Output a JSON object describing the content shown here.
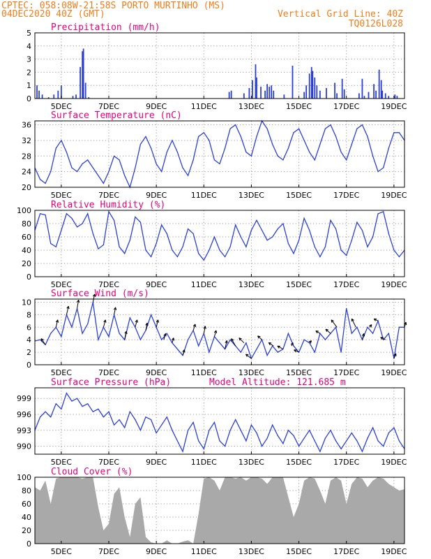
{
  "header": {
    "line1_left": "CPTEC:   058:08W-21:58S  PORTO MURTINHO (MS)",
    "line2_left": "04DEC2020 40Z (GMT)",
    "line2_right": "Vertical Grid Line: 40Z",
    "line3_right": "TQ0126L028"
  },
  "x_ticks": [
    "5DEC",
    "7DEC",
    "9DEC",
    "11DEC",
    "13DEC",
    "15DEC",
    "17DEC",
    "19DEC"
  ],
  "colors": {
    "line": "#2b3fd6",
    "cloud": "#a9a9a9",
    "title": "#e4007a",
    "header": "#f07d1c",
    "arrow": "#000000"
  },
  "chart_data": [
    {
      "type": "bar",
      "title": "Precipitation (mm/h)",
      "ylim": [
        0,
        5
      ],
      "yticks": [
        "0",
        "1",
        "2",
        "3",
        "4",
        "5"
      ],
      "series_color": "line",
      "values": [
        [
          0.2,
          1.0
        ],
        [
          0.4,
          0.6
        ],
        [
          0.7,
          0.3
        ],
        [
          1.3,
          0.1
        ],
        [
          1.8,
          0.3
        ],
        [
          2.2,
          0.6
        ],
        [
          2.5,
          1.0
        ],
        [
          3.6,
          0.2
        ],
        [
          3.9,
          0.3
        ],
        [
          4.3,
          2.4
        ],
        [
          4.5,
          3.6
        ],
        [
          4.6,
          3.8
        ],
        [
          4.8,
          1.2
        ],
        [
          5.1,
          0.1
        ],
        [
          18.4,
          0.5
        ],
        [
          18.6,
          0.6
        ],
        [
          19.8,
          0.4
        ],
        [
          20.3,
          0.8
        ],
        [
          20.6,
          1.4
        ],
        [
          20.9,
          2.6
        ],
        [
          21.0,
          1.6
        ],
        [
          21.4,
          0.9
        ],
        [
          21.8,
          0.6
        ],
        [
          22.0,
          1.1
        ],
        [
          22.2,
          0.9
        ],
        [
          22.4,
          1.0
        ],
        [
          22.6,
          0.6
        ],
        [
          23.6,
          0.3
        ],
        [
          24.4,
          2.5
        ],
        [
          25.5,
          0.5
        ],
        [
          25.7,
          1.0
        ],
        [
          26.0,
          1.9
        ],
        [
          26.2,
          2.4
        ],
        [
          26.3,
          2.1
        ],
        [
          26.5,
          1.6
        ],
        [
          26.7,
          1.0
        ],
        [
          27.0,
          0.6
        ],
        [
          27.6,
          0.8
        ],
        [
          28.4,
          1.2
        ],
        [
          28.6,
          0.4
        ],
        [
          29.1,
          1.5
        ],
        [
          29.3,
          0.7
        ],
        [
          30.7,
          0.4
        ],
        [
          31.0,
          1.5
        ],
        [
          31.2,
          0.2
        ],
        [
          31.6,
          0.5
        ],
        [
          32.1,
          1.1
        ],
        [
          32.3,
          0.6
        ],
        [
          32.6,
          2.2
        ],
        [
          32.8,
          1.4
        ],
        [
          32.9,
          0.6
        ],
        [
          33.2,
          0.4
        ],
        [
          33.5,
          0.2
        ],
        [
          34.1,
          0.3
        ],
        [
          34.3,
          0.2
        ]
      ]
    },
    {
      "type": "line",
      "title": "Surface Temperature (nC)",
      "ylim": [
        20,
        37
      ],
      "yticks": [
        "20",
        "24",
        "28",
        "32",
        "36"
      ],
      "x": [
        0,
        0.5,
        1,
        1.5,
        2,
        2.5,
        3,
        3.5,
        4,
        4.5,
        5,
        5.5,
        6,
        6.5,
        7,
        7.5,
        8,
        8.5,
        9,
        9.5,
        10,
        10.5,
        11,
        11.5,
        12,
        12.5,
        13,
        13.5,
        14,
        14.5,
        15,
        15.5,
        16,
        16.5,
        17,
        17.5,
        18,
        18.5,
        19,
        19.5,
        20,
        20.5,
        21,
        21.5,
        22,
        22.5,
        23,
        23.5,
        24,
        24.5,
        25,
        25.5,
        26,
        26.5,
        27,
        27.5,
        28,
        28.5,
        29,
        29.5,
        30,
        30.5,
        31,
        31.5,
        32,
        32.5,
        33,
        33.5,
        34,
        34.5,
        35
      ],
      "y": [
        25,
        22,
        21,
        24,
        30,
        32,
        29,
        25,
        24,
        26,
        27,
        25,
        23,
        21,
        24,
        28,
        27,
        23,
        20,
        25,
        31,
        33,
        30,
        26,
        24,
        29,
        32,
        29,
        25,
        23,
        27,
        33,
        34,
        32,
        27,
        26,
        30,
        35,
        36,
        33,
        29,
        28,
        33,
        37,
        35,
        31,
        28,
        27,
        30,
        34,
        35,
        32,
        29,
        27,
        31,
        35,
        36,
        33,
        29,
        27,
        31,
        35,
        36,
        33,
        28,
        24,
        25,
        30,
        34,
        34,
        32
      ]
    },
    {
      "type": "line",
      "title": "Relative Humidity (%)",
      "ylim": [
        0,
        100
      ],
      "yticks": [
        "0",
        "20",
        "40",
        "60",
        "80",
        "100"
      ],
      "x": [
        0,
        0.5,
        1,
        1.5,
        2,
        2.5,
        3,
        3.5,
        4,
        4.5,
        5,
        5.5,
        6,
        6.5,
        7,
        7.5,
        8,
        8.5,
        9,
        9.5,
        10,
        10.5,
        11,
        11.5,
        12,
        12.5,
        13,
        13.5,
        14,
        14.5,
        15,
        15.5,
        16,
        16.5,
        17,
        17.5,
        18,
        18.5,
        19,
        19.5,
        20,
        20.5,
        21,
        21.5,
        22,
        22.5,
        23,
        23.5,
        24,
        24.5,
        25,
        25.5,
        26,
        26.5,
        27,
        27.5,
        28,
        28.5,
        29,
        29.5,
        30,
        30.5,
        31,
        31.5,
        32,
        32.5,
        33,
        33.5,
        34,
        34.5,
        35
      ],
      "y": [
        70,
        95,
        93,
        50,
        45,
        70,
        95,
        88,
        75,
        80,
        95,
        65,
        42,
        48,
        98,
        85,
        45,
        35,
        55,
        90,
        82,
        40,
        30,
        50,
        78,
        65,
        40,
        30,
        45,
        72,
        65,
        35,
        25,
        40,
        60,
        40,
        30,
        45,
        78,
        60,
        45,
        70,
        85,
        70,
        55,
        60,
        72,
        80,
        50,
        35,
        55,
        88,
        70,
        45,
        30,
        45,
        85,
        72,
        40,
        32,
        55,
        82,
        70,
        45,
        60,
        95,
        98,
        65,
        40,
        30,
        40
      ]
    },
    {
      "type": "line",
      "title": "Surface Wind (m/s)",
      "ylim": [
        0,
        10.5
      ],
      "yticks": [
        "0",
        "2",
        "4",
        "6",
        "8",
        "10"
      ],
      "x": [
        0,
        0.5,
        1,
        1.5,
        2,
        2.5,
        3,
        3.5,
        4,
        4.5,
        5,
        5.5,
        6,
        6.5,
        7,
        7.5,
        8,
        8.5,
        9,
        9.5,
        10,
        10.5,
        11,
        11.5,
        12,
        12.5,
        13,
        13.5,
        14,
        14.5,
        15,
        15.5,
        16,
        16.5,
        17,
        17.5,
        18,
        18.5,
        19,
        19.5,
        20,
        20.5,
        21,
        21.5,
        22,
        22.5,
        23,
        23.5,
        24,
        24.5,
        25,
        25.5,
        26,
        26.5,
        27,
        27.5,
        28,
        28.5,
        29,
        29.5,
        30,
        30.5,
        31,
        31.5,
        32,
        32.5,
        33,
        33.5,
        34,
        34.5,
        35
      ],
      "y": [
        3.8,
        4,
        3.2,
        5,
        6,
        4.5,
        8,
        6,
        9,
        5,
        6.5,
        10,
        4,
        6,
        4.5,
        8,
        5,
        4,
        7.5,
        6,
        4,
        5.5,
        8,
        6,
        4,
        5,
        3.5,
        2.5,
        1.5,
        4,
        5.5,
        3,
        5,
        2,
        4.5,
        3.5,
        2.5,
        4,
        3,
        2,
        3.5,
        1,
        2.5,
        4,
        1.5,
        3,
        2,
        2.5,
        5,
        3,
        2,
        4,
        3.5,
        2,
        5,
        4,
        5,
        6,
        2,
        9,
        5,
        6,
        4,
        6,
        5,
        7,
        4,
        5,
        1,
        6,
        6
      ]
    },
    {
      "type": "line",
      "title": "Surface Pressure (hPa)",
      "annotation": "Model Altitude: 121.685 m",
      "ylim": [
        988.5,
        1001
      ],
      "yticks": [
        "990",
        "993",
        "996",
        "999"
      ],
      "x": [
        0,
        0.5,
        1,
        1.5,
        2,
        2.5,
        3,
        3.5,
        4,
        4.5,
        5,
        5.5,
        6,
        6.5,
        7,
        7.5,
        8,
        8.5,
        9,
        9.5,
        10,
        10.5,
        11,
        11.5,
        12,
        12.5,
        13,
        13.5,
        14,
        14.5,
        15,
        15.5,
        16,
        16.5,
        17,
        17.5,
        18,
        18.5,
        19,
        19.5,
        20,
        20.5,
        21,
        21.5,
        22,
        22.5,
        23,
        23.5,
        24,
        24.5,
        25,
        25.5,
        26,
        26.5,
        27,
        27.5,
        28,
        28.5,
        29,
        29.5,
        30,
        30.5,
        31,
        31.5,
        32,
        32.5,
        33,
        33.5,
        34,
        34.5,
        35
      ],
      "y": [
        993,
        995.5,
        996.5,
        995.5,
        998,
        997,
        1000,
        998.5,
        999,
        997.5,
        998,
        996.5,
        997,
        995.5,
        996.5,
        994,
        995,
        993.5,
        996.5,
        995,
        993,
        995.5,
        995,
        992.5,
        994,
        995.5,
        993,
        991,
        989,
        993,
        994.5,
        991,
        989.5,
        993,
        994.5,
        991,
        990,
        993,
        995,
        993,
        991,
        994,
        992.5,
        990,
        991.5,
        994,
        992,
        990.5,
        993,
        992,
        990,
        991.5,
        993,
        991,
        989,
        991.5,
        993,
        991,
        989.5,
        991,
        992.5,
        991,
        989,
        991.5,
        993.5,
        991,
        990,
        992.5,
        993.5,
        991,
        989.5
      ]
    },
    {
      "type": "area",
      "title": "Cloud Cover (%)",
      "ylim": [
        0,
        100
      ],
      "yticks": [
        "0",
        "20",
        "40",
        "60",
        "80",
        "100"
      ],
      "x": [
        0,
        0.5,
        1,
        1.5,
        2,
        2.5,
        3,
        3.5,
        4,
        4.5,
        5,
        5.5,
        6,
        6.5,
        7,
        7.5,
        8,
        8.5,
        9,
        9.5,
        10,
        10.5,
        11,
        11.5,
        12,
        12.5,
        13,
        13.5,
        14,
        14.5,
        15,
        15.5,
        16,
        16.5,
        17,
        17.5,
        18,
        18.5,
        19,
        19.5,
        20,
        20.5,
        21,
        21.5,
        22,
        22.5,
        23,
        23.5,
        24,
        24.5,
        25,
        25.5,
        26,
        26.5,
        27,
        27.5,
        28,
        28.5,
        29,
        29.5,
        30,
        30.5,
        31,
        31.5,
        32,
        32.5,
        33,
        33.5,
        34,
        34.5,
        35
      ],
      "y": [
        85,
        80,
        95,
        60,
        98,
        100,
        100,
        100,
        100,
        98,
        100,
        100,
        55,
        20,
        30,
        75,
        85,
        40,
        10,
        60,
        70,
        10,
        2,
        0,
        0,
        5,
        0,
        0,
        3,
        5,
        0,
        45,
        98,
        100,
        95,
        80,
        100,
        100,
        98,
        100,
        95,
        100,
        100,
        98,
        90,
        100,
        100,
        100,
        70,
        40,
        60,
        95,
        100,
        98,
        80,
        60,
        95,
        100,
        95,
        60,
        90,
        100,
        98,
        85,
        95,
        100,
        98,
        90,
        85,
        80,
        82
      ]
    }
  ]
}
